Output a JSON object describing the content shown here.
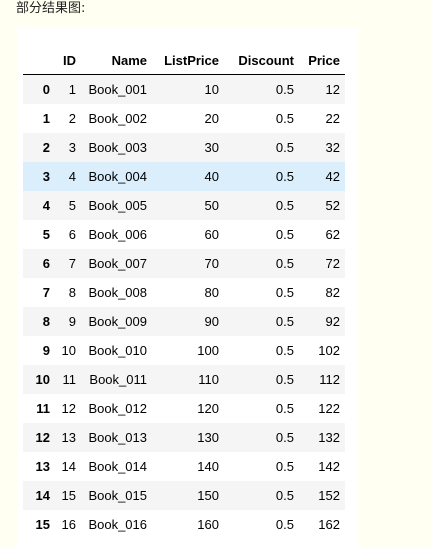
{
  "caption": "部分结果图:",
  "table": {
    "headers": [
      "",
      "ID",
      "Name",
      "ListPrice",
      "Discount",
      "Price"
    ],
    "rows": [
      {
        "index": "0",
        "id": "1",
        "name": "Book_001",
        "list_price": "10",
        "discount": "0.5",
        "price": "12"
      },
      {
        "index": "1",
        "id": "2",
        "name": "Book_002",
        "list_price": "20",
        "discount": "0.5",
        "price": "22"
      },
      {
        "index": "2",
        "id": "3",
        "name": "Book_003",
        "list_price": "30",
        "discount": "0.5",
        "price": "32"
      },
      {
        "index": "3",
        "id": "4",
        "name": "Book_004",
        "list_price": "40",
        "discount": "0.5",
        "price": "42"
      },
      {
        "index": "4",
        "id": "5",
        "name": "Book_005",
        "list_price": "50",
        "discount": "0.5",
        "price": "52"
      },
      {
        "index": "5",
        "id": "6",
        "name": "Book_006",
        "list_price": "60",
        "discount": "0.5",
        "price": "62"
      },
      {
        "index": "6",
        "id": "7",
        "name": "Book_007",
        "list_price": "70",
        "discount": "0.5",
        "price": "72"
      },
      {
        "index": "7",
        "id": "8",
        "name": "Book_008",
        "list_price": "80",
        "discount": "0.5",
        "price": "82"
      },
      {
        "index": "8",
        "id": "9",
        "name": "Book_009",
        "list_price": "90",
        "discount": "0.5",
        "price": "92"
      },
      {
        "index": "9",
        "id": "10",
        "name": "Book_010",
        "list_price": "100",
        "discount": "0.5",
        "price": "102"
      },
      {
        "index": "10",
        "id": "11",
        "name": "Book_011",
        "list_price": "110",
        "discount": "0.5",
        "price": "112"
      },
      {
        "index": "11",
        "id": "12",
        "name": "Book_012",
        "list_price": "120",
        "discount": "0.5",
        "price": "122"
      },
      {
        "index": "12",
        "id": "13",
        "name": "Book_013",
        "list_price": "130",
        "discount": "0.5",
        "price": "132"
      },
      {
        "index": "13",
        "id": "14",
        "name": "Book_014",
        "list_price": "140",
        "discount": "0.5",
        "price": "142"
      },
      {
        "index": "14",
        "id": "15",
        "name": "Book_015",
        "list_price": "150",
        "discount": "0.5",
        "price": "152"
      },
      {
        "index": "15",
        "id": "16",
        "name": "Book_016",
        "list_price": "160",
        "discount": "0.5",
        "price": "162"
      }
    ],
    "highlighted_row": 3
  },
  "colors": {
    "page_background": "#fffff2",
    "panel_background": "#ffffff",
    "striped_row": "#f5f5f5",
    "highlight_row": "#daeefc"
  }
}
